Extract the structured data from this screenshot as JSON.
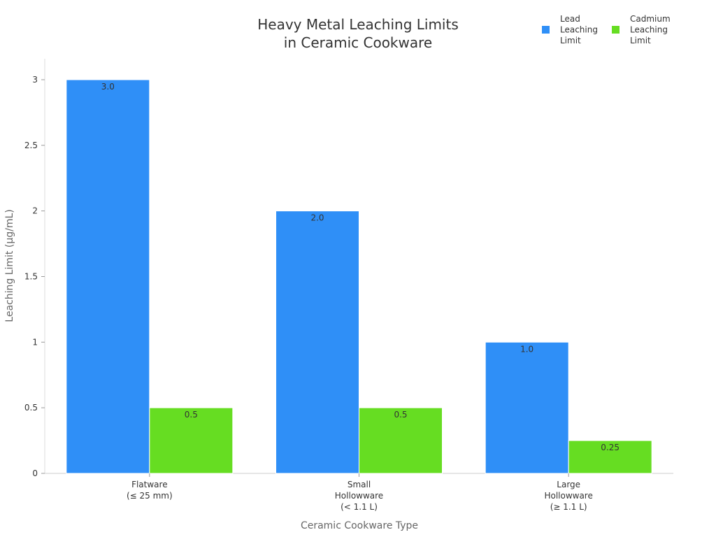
{
  "chart_data": {
    "type": "bar",
    "title": [
      "Heavy Metal Leaching Limits",
      "in Ceramic Cookware"
    ],
    "xlabel": "Ceramic Cookware Type",
    "ylabel": "Leaching Limit (µg/mL)",
    "ylim": [
      0,
      3
    ],
    "yticks": [
      {
        "value": 0,
        "label": "0"
      },
      {
        "value": 0.5,
        "label": "0.5"
      },
      {
        "value": 1,
        "label": "1"
      },
      {
        "value": 1.5,
        "label": "1.5"
      },
      {
        "value": 2,
        "label": "2"
      },
      {
        "value": 2.5,
        "label": "2.5"
      },
      {
        "value": 3,
        "label": "3"
      }
    ],
    "grid": false,
    "legend_position": "top-right",
    "categories": [
      [
        "Flatware",
        "(≤ 25 mm)"
      ],
      [
        "Small",
        "Hollowware",
        "(< 1.1 L)"
      ],
      [
        "Large",
        "Hollowware",
        "(≥ 1.1 L)"
      ]
    ],
    "series": [
      {
        "name": [
          "Lead",
          "Leaching",
          "Limit"
        ],
        "color": "#2f8ff7",
        "values": [
          3.0,
          2.0,
          1.0
        ],
        "labels": [
          "3.0",
          "2.0",
          "1.0"
        ]
      },
      {
        "name": [
          "Cadmium",
          "Leaching",
          "Limit"
        ],
        "color": "#66dd22",
        "values": [
          0.5,
          0.5,
          0.25
        ],
        "labels": [
          "0.5",
          "0.5",
          "0.25"
        ]
      }
    ]
  }
}
